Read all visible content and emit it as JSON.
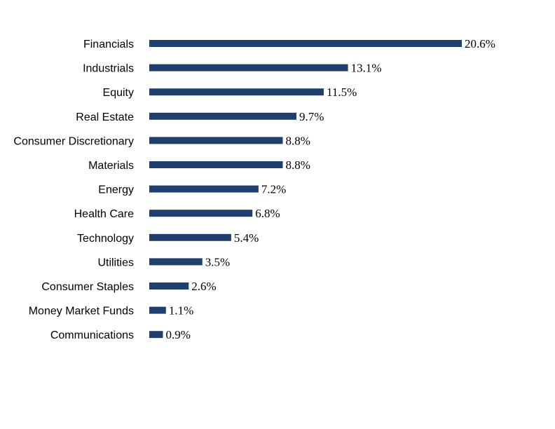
{
  "colors": {
    "bar": "#1f3f6e",
    "text": "#000000",
    "background": "#ffffff"
  },
  "chart_data": {
    "type": "bar",
    "orientation": "horizontal",
    "grid": false,
    "legend": "none",
    "xlim": [
      0,
      20.6
    ],
    "categories": [
      "Financials",
      "Industrials",
      "Equity",
      "Real Estate",
      "Consumer Discretionary",
      "Materials",
      "Energy",
      "Health Care",
      "Technology",
      "Utilities",
      "Consumer Staples",
      "Money Market Funds",
      "Communications"
    ],
    "values": [
      20.6,
      13.1,
      11.5,
      9.7,
      8.8,
      8.8,
      7.2,
      6.8,
      5.4,
      3.5,
      2.6,
      1.1,
      0.9
    ],
    "value_labels": [
      "20.6%",
      "13.1%",
      "11.5%",
      "9.7%",
      "8.8%",
      "8.8%",
      "7.2%",
      "6.8%",
      "5.4%",
      "3.5%",
      "2.6%",
      "1.1%",
      "0.9%"
    ]
  }
}
